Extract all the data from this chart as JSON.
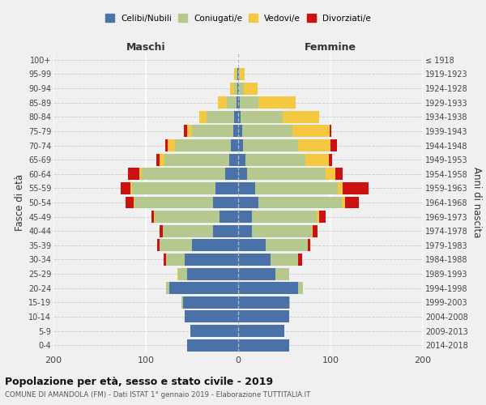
{
  "age_groups": [
    "0-4",
    "5-9",
    "10-14",
    "15-19",
    "20-24",
    "25-29",
    "30-34",
    "35-39",
    "40-44",
    "45-49",
    "50-54",
    "55-59",
    "60-64",
    "65-69",
    "70-74",
    "75-79",
    "80-84",
    "85-89",
    "90-94",
    "95-99",
    "100+"
  ],
  "birth_years": [
    "2014-2018",
    "2009-2013",
    "2004-2008",
    "1999-2003",
    "1994-1998",
    "1989-1993",
    "1984-1988",
    "1979-1983",
    "1974-1978",
    "1969-1973",
    "1964-1968",
    "1959-1963",
    "1954-1958",
    "1949-1953",
    "1944-1948",
    "1939-1943",
    "1934-1938",
    "1929-1933",
    "1924-1928",
    "1919-1923",
    "≤ 1918"
  ],
  "maschi": {
    "celibi": [
      55,
      52,
      58,
      60,
      75,
      55,
      58,
      50,
      27,
      20,
      27,
      25,
      14,
      10,
      8,
      5,
      4,
      2,
      1,
      1,
      0
    ],
    "coniugati": [
      0,
      0,
      0,
      1,
      3,
      10,
      20,
      35,
      55,
      70,
      85,
      90,
      90,
      70,
      60,
      45,
      30,
      10,
      3,
      1,
      0
    ],
    "vedovi": [
      0,
      0,
      0,
      0,
      0,
      1,
      0,
      0,
      0,
      1,
      1,
      2,
      3,
      5,
      8,
      5,
      8,
      10,
      5,
      2,
      0
    ],
    "divorziati": [
      0,
      0,
      0,
      0,
      0,
      0,
      3,
      3,
      3,
      3,
      9,
      10,
      12,
      4,
      3,
      4,
      0,
      0,
      0,
      0,
      0
    ]
  },
  "femmine": {
    "nubili": [
      55,
      50,
      55,
      55,
      65,
      40,
      35,
      30,
      15,
      15,
      22,
      18,
      10,
      8,
      5,
      4,
      3,
      2,
      1,
      1,
      0
    ],
    "coniugate": [
      0,
      0,
      0,
      1,
      5,
      15,
      30,
      45,
      65,
      70,
      90,
      90,
      85,
      65,
      60,
      55,
      45,
      20,
      5,
      1,
      0
    ],
    "vedove": [
      0,
      0,
      0,
      0,
      0,
      0,
      0,
      0,
      1,
      3,
      4,
      5,
      10,
      25,
      35,
      40,
      40,
      40,
      15,
      5,
      0
    ],
    "divorziate": [
      0,
      0,
      0,
      0,
      0,
      0,
      4,
      3,
      5,
      7,
      15,
      28,
      8,
      4,
      7,
      2,
      0,
      0,
      0,
      0,
      0
    ]
  },
  "colors": {
    "celibi": "#4a72a8",
    "coniugati": "#b5c98e",
    "vedovi": "#f5c842",
    "divorziati": "#cc1111"
  },
  "xlim": [
    -200,
    200
  ],
  "xticks": [
    -200,
    -100,
    0,
    100,
    200
  ],
  "xticklabels": [
    "200",
    "100",
    "0",
    "100",
    "200"
  ],
  "title": "Popolazione per età, sesso e stato civile - 2019",
  "subtitle": "COMUNE DI AMANDOLA (FM) - Dati ISTAT 1° gennaio 2019 - Elaborazione TUTTITALIA.IT",
  "ylabel_left": "Fasce di età",
  "ylabel_right": "Anni di nascita",
  "label_maschi": "Maschi",
  "label_femmine": "Femmine",
  "legend_labels": [
    "Celibi/Nubili",
    "Coniugati/e",
    "Vedovi/e",
    "Divorziati/e"
  ],
  "bg_color": "#f0f0f0",
  "bar_height": 0.85
}
